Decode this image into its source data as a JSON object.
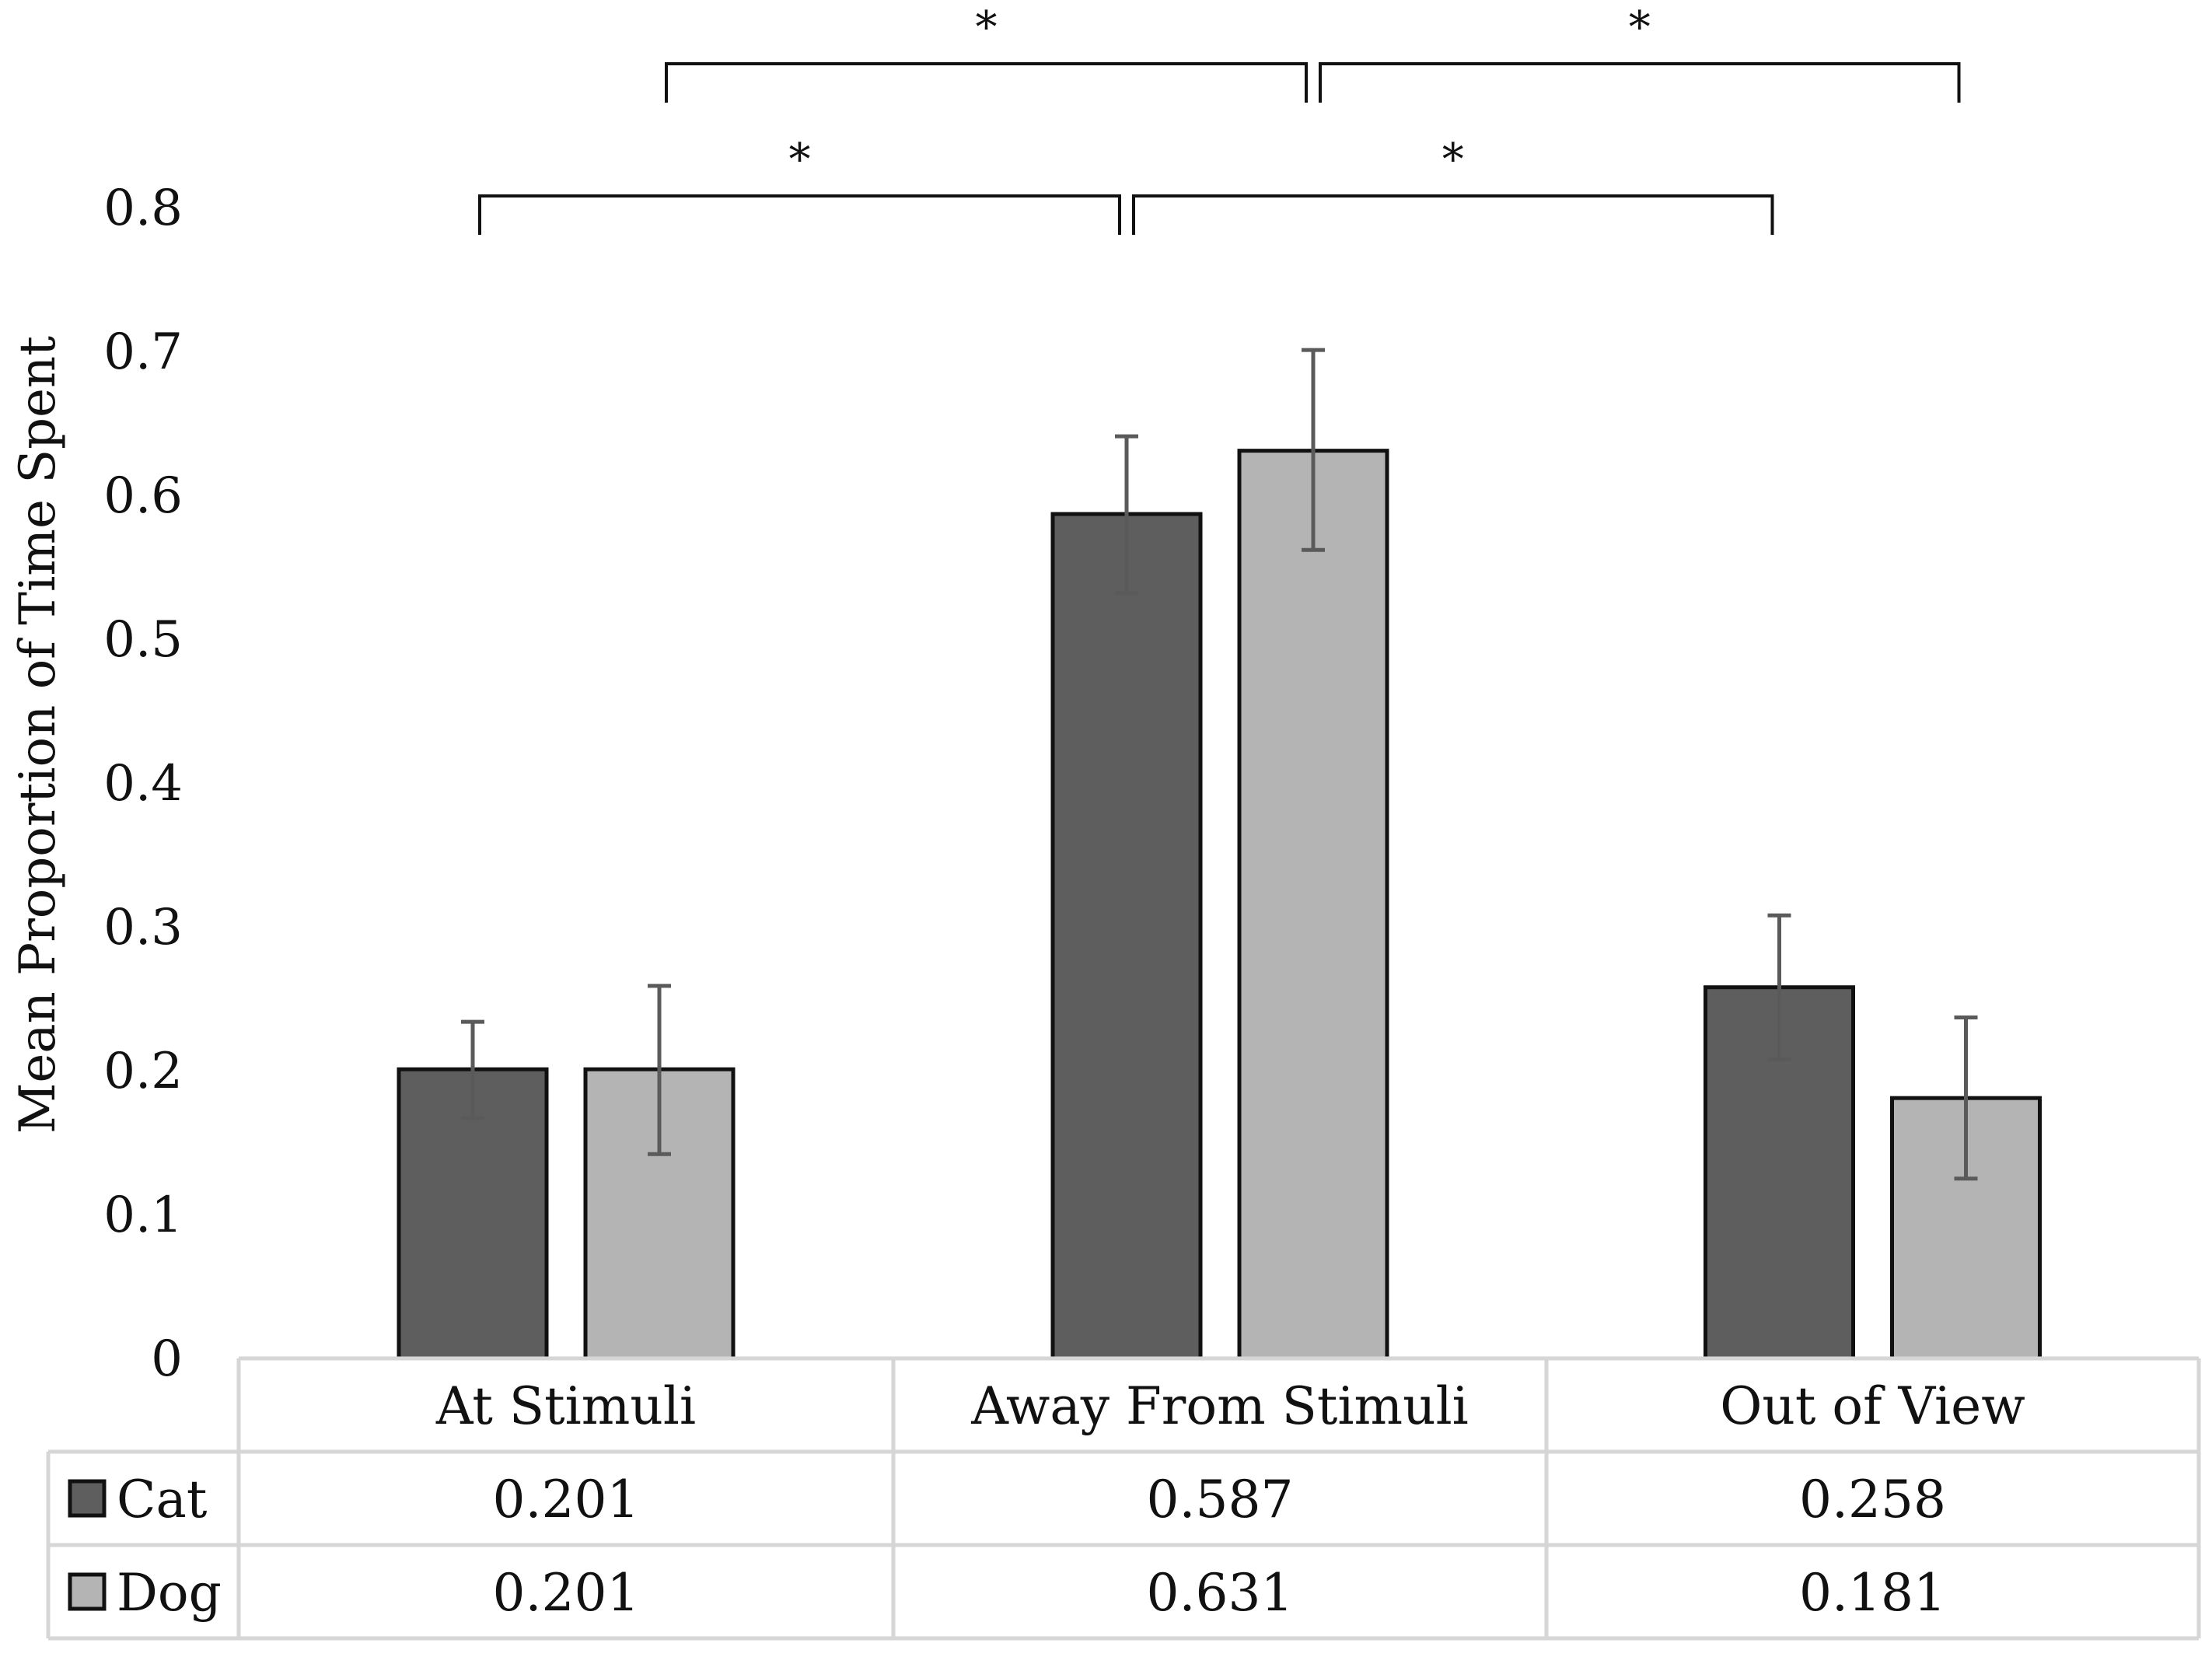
{
  "chart_data": {
    "type": "bar",
    "title": "",
    "xlabel": "",
    "ylabel": "Mean Proportion of Time Spent",
    "ylim": [
      0,
      0.8
    ],
    "yticks": [
      "0",
      "0.1",
      "0.2",
      "0.3",
      "0.4",
      "0.5",
      "0.6",
      "0.7",
      "0.8"
    ],
    "grid": false,
    "categories": [
      "At Stimuli",
      "Away From Stimuli",
      "Out of View"
    ],
    "series": [
      {
        "name": "Cat",
        "color": "#5e5e5e",
        "values": [
          0.201,
          0.587,
          0.258
        ],
        "labels": [
          "0.201",
          "0.587",
          "0.258"
        ],
        "error_low": [
          0.167,
          0.532,
          0.208
        ],
        "error_high": [
          0.234,
          0.641,
          0.308
        ]
      },
      {
        "name": "Dog",
        "color": "#b4b4b4",
        "values": [
          0.201,
          0.631,
          0.181
        ],
        "labels": [
          "0.201",
          "0.631",
          "0.181"
        ],
        "error_low": [
          0.142,
          0.562,
          0.125
        ],
        "error_high": [
          0.259,
          0.701,
          0.237
        ]
      }
    ],
    "significance": [
      {
        "from": "Cat|At Stimuli",
        "to": "Cat|Away From Stimuli",
        "label": "*",
        "level": 1
      },
      {
        "from": "Cat|Away From Stimuli",
        "to": "Cat|Out of View",
        "label": "*",
        "level": 1
      },
      {
        "from": "Dog|At Stimuli",
        "to": "Dog|Away From Stimuli",
        "label": "*",
        "level": 2
      },
      {
        "from": "Dog|Away From Stimuli",
        "to": "Dog|Out of View",
        "label": "*",
        "level": 2
      }
    ],
    "legend": "data-table"
  }
}
